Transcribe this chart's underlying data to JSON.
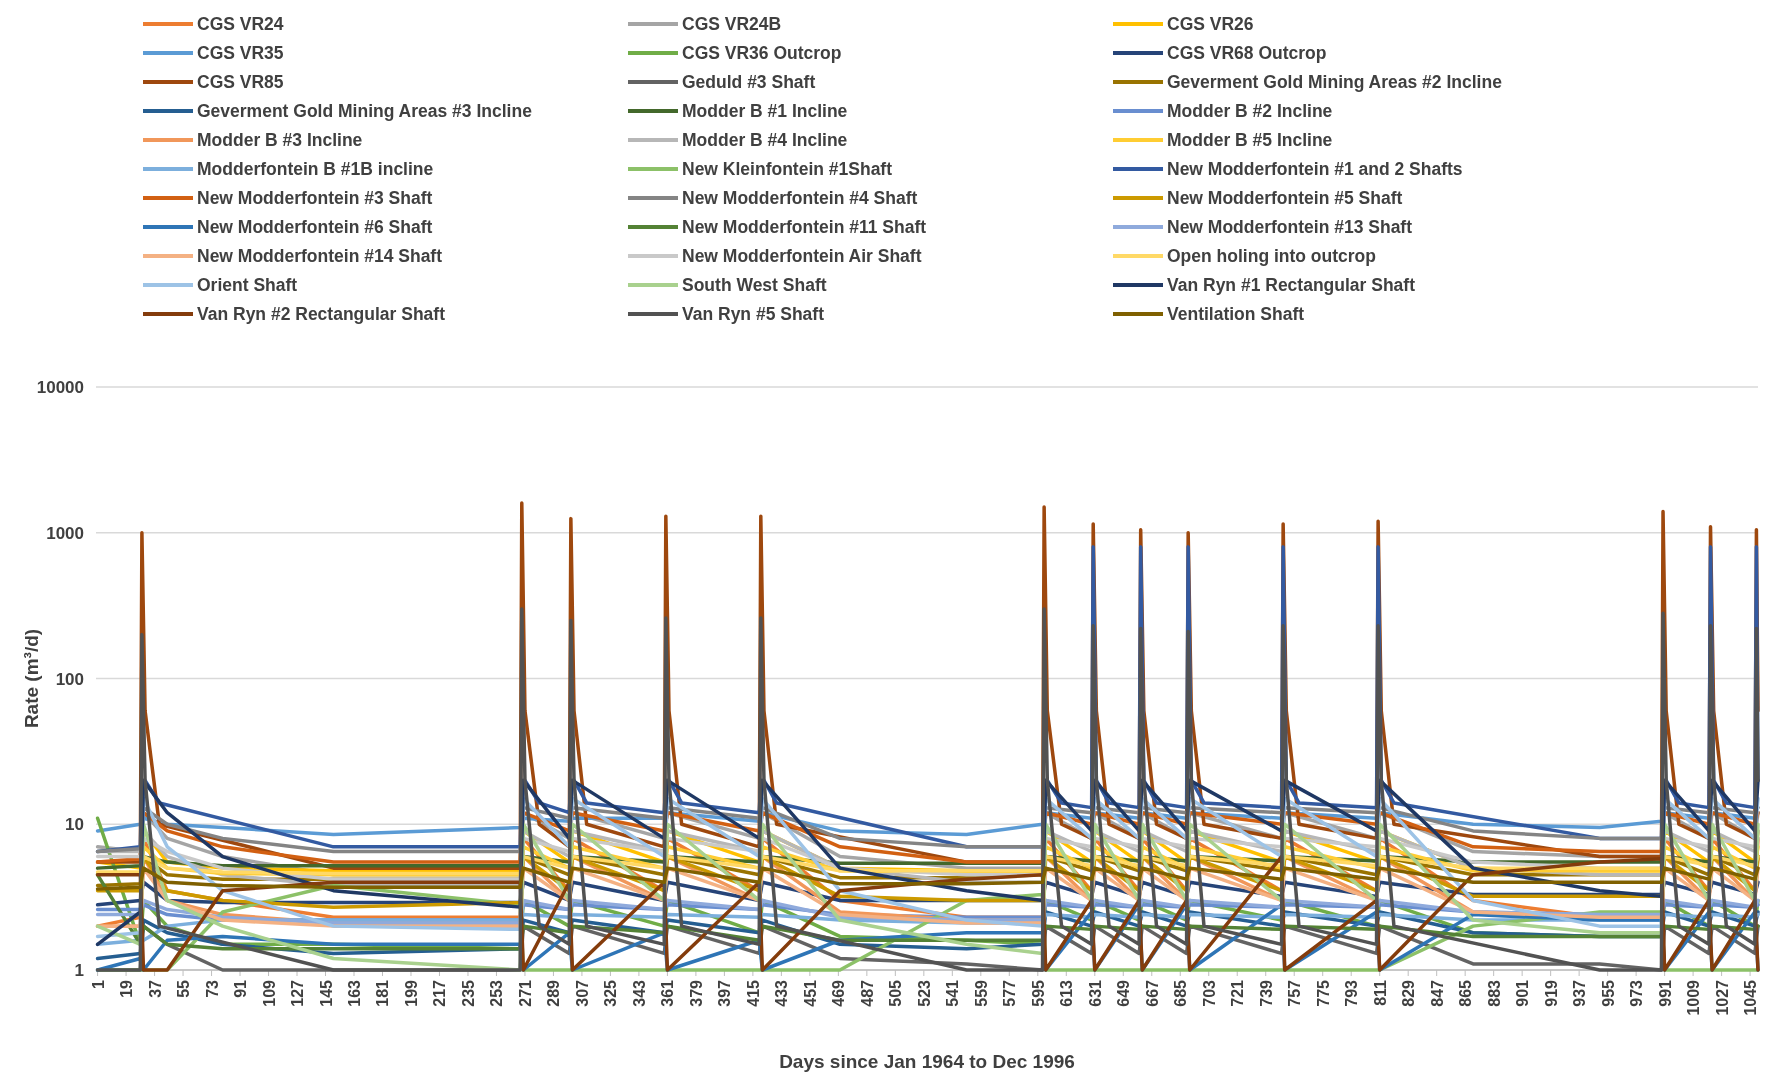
{
  "chart_data": {
    "type": "line",
    "xlabel": "Days since Jan 1964 to Dec 1996",
    "ylabel": "Rate (m³/d)",
    "log": true,
    "grid": "y",
    "legend": "top",
    "marker": "none",
    "line_style": "solid",
    "xlim": [
      0,
      1050
    ],
    "xticks": [
      1,
      19,
      37,
      55,
      73,
      91,
      109,
      127,
      145,
      163,
      181,
      199,
      217,
      235,
      253,
      271,
      289,
      307,
      325,
      343,
      361,
      379,
      397,
      415,
      433,
      451,
      469,
      487,
      505,
      523,
      541,
      559,
      577,
      595,
      613,
      631,
      649,
      667,
      685,
      703,
      721,
      739,
      757,
      775,
      793,
      811,
      829,
      847,
      865,
      883,
      901,
      919,
      937,
      955,
      973,
      991,
      1009,
      1027,
      1045
    ],
    "ylim": [
      1,
      10000
    ],
    "yticks": [
      1,
      10,
      100,
      1000,
      10000
    ],
    "x": [
      1,
      28,
      30,
      45,
      80,
      150,
      268,
      270,
      299,
      301,
      359,
      361,
      419,
      421,
      470,
      550,
      598,
      600,
      629,
      631,
      659,
      661,
      689,
      691,
      749,
      751,
      809,
      811,
      870,
      950,
      989,
      991,
      1019,
      1021,
      1048,
      1050
    ],
    "series": [
      {
        "name": "CGS VR24",
        "color": "#ed7d31",
        "values": [
          2,
          2.3,
          8,
          3.5,
          3,
          2.3,
          2.3,
          8,
          3.5,
          8,
          3.5,
          8,
          3.5,
          8,
          3,
          2.3,
          2.3,
          8,
          3.5,
          8,
          3.5,
          8,
          3.5,
          8,
          3.5,
          8,
          3.5,
          8,
          3,
          2.3,
          2.3,
          8,
          3.5,
          8,
          3.5,
          8
        ]
      },
      {
        "name": "CGS VR24B",
        "color": "#a5a5a5",
        "values": [
          7,
          6.5,
          12,
          8,
          6,
          4.5,
          4.5,
          12,
          8,
          12,
          8,
          12,
          8,
          12,
          6,
          5,
          5,
          12,
          8,
          12,
          8,
          12,
          8,
          12,
          8,
          12,
          8,
          12,
          6.5,
          6,
          6,
          12,
          8,
          12,
          8,
          12
        ]
      },
      {
        "name": "CGS VR26",
        "color": "#ffc000",
        "values": [
          5.5,
          5,
          9,
          5.5,
          5,
          4.8,
          4.8,
          9,
          5.5,
          9,
          5.5,
          9,
          5.5,
          9,
          5,
          4.8,
          4.8,
          9,
          5.5,
          9,
          5.5,
          9,
          5.5,
          9,
          5.5,
          9,
          5.5,
          9,
          5,
          4.8,
          4.8,
          9,
          5.5,
          9,
          5.5,
          9
        ]
      },
      {
        "name": "CGS VR35",
        "color": "#5b9bd5",
        "values": [
          9,
          10,
          11,
          10,
          9.5,
          8.5,
          9.5,
          11,
          10.5,
          11,
          11,
          12,
          10.5,
          12,
          9,
          8.5,
          10,
          12,
          11,
          12,
          11,
          12,
          11,
          12,
          11,
          12,
          11,
          12,
          10,
          9.5,
          10.5,
          12,
          11,
          12,
          11,
          12
        ]
      },
      {
        "name": "CGS VR36 Outcrop",
        "color": "#70ad47",
        "values": [
          11,
          1.5,
          3,
          2,
          1.5,
          1.5,
          1.4,
          3,
          2,
          3,
          2,
          3,
          1.8,
          3,
          1.7,
          1.6,
          1.5,
          3,
          2.2,
          3,
          2.2,
          3,
          2.2,
          3,
          2.2,
          3,
          2,
          3,
          1.8,
          1.7,
          1.7,
          3,
          2,
          3,
          2,
          3
        ]
      },
      {
        "name": "CGS VR68 Outcrop",
        "color": "#264478",
        "values": [
          2.8,
          3,
          4,
          3,
          2.9,
          2.9,
          2.9,
          4,
          3,
          4,
          3,
          4,
          3,
          4,
          3,
          3,
          3,
          4,
          3.2,
          4,
          3.2,
          4,
          3.2,
          4,
          3.2,
          4,
          3.2,
          4,
          3.3,
          3.3,
          3.3,
          4,
          3.3,
          4,
          3.3,
          4
        ]
      },
      {
        "name": "CGS VR85",
        "color": "#9e480e",
        "x": [
          1,
          28,
          29,
          31,
          40,
          150,
          268,
          269,
          271,
          280,
          299,
          300,
          302,
          310,
          359,
          360,
          362,
          370,
          419,
          420,
          422,
          430,
          550,
          598,
          599,
          601,
          610,
          629,
          630,
          632,
          640,
          659,
          660,
          662,
          670,
          689,
          690,
          692,
          700,
          749,
          750,
          752,
          760,
          809,
          810,
          812,
          820,
          950,
          989,
          990,
          992,
          1000,
          1019,
          1020,
          1022,
          1030,
          1048,
          1049,
          1050
        ],
        "values": [
          5.5,
          5.5,
          1000,
          60,
          10,
          5,
          5,
          1600,
          60,
          10,
          7,
          1250,
          60,
          10,
          7,
          1300,
          60,
          10,
          7,
          1300,
          60,
          10,
          5.5,
          5.5,
          1500,
          60,
          10,
          8,
          1150,
          60,
          10,
          8,
          1050,
          60,
          10,
          8,
          1000,
          60,
          10,
          8,
          1150,
          60,
          10,
          8,
          1200,
          60,
          10,
          6,
          6,
          1400,
          60,
          10,
          8,
          1100,
          60,
          10,
          8,
          1050,
          60
        ]
      },
      {
        "name": "Geduld #3 Shaft",
        "color": "#636363",
        "values": [
          1,
          1,
          2,
          1.5,
          1,
          1,
          1,
          2,
          1.3,
          2,
          1.3,
          2,
          1.3,
          2,
          1.2,
          1.1,
          1,
          2,
          1.3,
          2,
          1.3,
          2,
          1.3,
          2,
          1.3,
          2,
          1.3,
          2,
          1.1,
          1.1,
          1,
          2,
          1.3,
          2,
          1.3,
          2
        ]
      },
      {
        "name": "Geverment Gold Mining Areas #2 Incline",
        "color": "#997300",
        "values": [
          3.8,
          3.9,
          6,
          4.5,
          4.2,
          4.2,
          4.2,
          6,
          4.5,
          6,
          4.5,
          6,
          4.5,
          6,
          4.3,
          4.3,
          4.5,
          6,
          4.8,
          6,
          4.8,
          6,
          4.8,
          6,
          4.8,
          6,
          4.5,
          6,
          4.5,
          4.5,
          4.5,
          6,
          4.5,
          6,
          4.5,
          6
        ]
      },
      {
        "name": "Geverment Gold Mining Areas #3 Incline",
        "color": "#255e91",
        "values": [
          1.2,
          1.3,
          2.2,
          1.8,
          1.5,
          1.3,
          1.4,
          2.2,
          1.8,
          2.2,
          1.8,
          2.2,
          1.8,
          2.2,
          1.5,
          1.4,
          1.5,
          2.5,
          2,
          2.5,
          2,
          2.5,
          2,
          2.5,
          2,
          2.5,
          2,
          2.5,
          1.8,
          1.7,
          1.7,
          2.5,
          2,
          2.5,
          2,
          2.5
        ]
      },
      {
        "name": "Modder B #1 Incline",
        "color": "#43682b",
        "values": [
          5,
          5.2,
          6,
          5.5,
          5.2,
          5.2,
          5.2,
          6,
          5.5,
          6,
          5.5,
          6,
          5.5,
          6,
          5.4,
          5.4,
          5.4,
          6,
          5.6,
          6,
          5.6,
          6,
          5.6,
          6,
          5.6,
          6,
          5.6,
          6,
          5.5,
          5.5,
          5.5,
          6,
          5.5,
          6,
          5.5,
          6
        ]
      },
      {
        "name": "Modder B #2 Incline",
        "color": "#698ed0",
        "values": [
          2.6,
          2.6,
          2.8,
          2.4,
          2.2,
          2.2,
          2.2,
          2.8,
          2.6,
          2.8,
          2.6,
          2.8,
          2.6,
          2.8,
          2.4,
          2.3,
          2.3,
          2.8,
          2.7,
          2.8,
          2.7,
          2.8,
          2.7,
          2.8,
          2.7,
          2.8,
          2.7,
          2.8,
          2.5,
          2.4,
          2.4,
          2.8,
          2.7,
          2.8,
          2.7,
          2.8
        ]
      },
      {
        "name": "Modder B #3 Incline",
        "color": "#f1975a",
        "values": [
          2,
          2,
          6,
          3,
          2.4,
          2.1,
          2.1,
          6,
          3,
          6,
          3,
          6,
          3,
          6,
          2.5,
          2.2,
          2.2,
          6,
          3,
          6,
          3,
          6,
          3,
          6,
          3,
          6,
          3,
          6,
          2.5,
          2.3,
          2.3,
          6,
          3,
          6,
          3,
          6
        ]
      },
      {
        "name": "Modder B #4 Incline",
        "color": "#b7b7b7",
        "values": [
          6.5,
          6.5,
          9,
          6,
          4.5,
          3.8,
          3.8,
          9,
          6,
          9,
          6.5,
          9,
          6.5,
          9,
          5,
          4,
          4,
          9,
          6.5,
          9,
          6.5,
          9,
          6.5,
          9,
          6.5,
          9,
          6.5,
          9,
          5,
          4.5,
          4.5,
          9,
          6.5,
          9,
          6.5,
          9
        ]
      },
      {
        "name": "Modder B #5 Incline",
        "color": "#ffcd33",
        "values": [
          4.6,
          4.6,
          7,
          5,
          4.6,
          4.5,
          4.5,
          7,
          5,
          7,
          5,
          7,
          5,
          7,
          4.8,
          4.7,
          4.7,
          7,
          5,
          7,
          5,
          7,
          5,
          7,
          5,
          7,
          5,
          7,
          4.8,
          4.8,
          4.8,
          7,
          5,
          7,
          5,
          7
        ]
      },
      {
        "name": "Modderfontein B #1B incline",
        "color": "#7cafdd",
        "values": [
          1.5,
          1.6,
          1.6,
          2,
          2.2,
          2.2,
          2.2,
          2.4,
          2.3,
          2.4,
          2.3,
          2.4,
          2.3,
          2.4,
          2.2,
          2.1,
          2.1,
          2.4,
          2.3,
          2.4,
          2.3,
          2.4,
          2.3,
          2.4,
          2.3,
          2.4,
          2.3,
          2.4,
          2.2,
          2.2,
          2.2,
          2.4,
          2.3,
          2.4,
          2.3,
          2.4
        ]
      },
      {
        "name": "New Kleinfontein #1Shaft",
        "color": "#8cc168",
        "values": [
          1,
          1,
          1,
          1,
          2.5,
          3.8,
          2.8,
          1,
          1,
          1,
          1,
          1,
          1,
          1,
          1,
          3,
          3.3,
          1,
          1,
          1,
          1,
          1,
          1,
          1,
          1,
          1,
          1,
          1,
          2,
          2.5,
          2.5,
          1,
          1,
          1,
          1,
          1
        ]
      },
      {
        "name": "New Modderfontein #1 and 2 Shafts",
        "color": "#335aa1",
        "x": [
          1,
          28,
          29,
          31,
          40,
          150,
          268,
          269,
          271,
          280,
          299,
          300,
          302,
          310,
          359,
          360,
          362,
          370,
          419,
          420,
          422,
          430,
          550,
          598,
          599,
          601,
          610,
          629,
          630,
          632,
          640,
          659,
          660,
          662,
          670,
          689,
          690,
          692,
          700,
          749,
          750,
          752,
          760,
          809,
          810,
          812,
          820,
          950,
          989,
          990,
          992,
          1000,
          1019,
          1020,
          1022,
          1030,
          1048,
          1049,
          1050
        ],
        "values": [
          6.5,
          7,
          20,
          20,
          14,
          7,
          7,
          20,
          20,
          14,
          12,
          20,
          20,
          14,
          12,
          20,
          20,
          14,
          12,
          20,
          20,
          14,
          7,
          7,
          20,
          20,
          14,
          13,
          800,
          20,
          14,
          13,
          800,
          20,
          14,
          13,
          800,
          20,
          14,
          13,
          800,
          20,
          14,
          13,
          800,
          20,
          14,
          8,
          8,
          20,
          20,
          14,
          13,
          800,
          20,
          14,
          13,
          800,
          20
        ]
      },
      {
        "name": "New Modderfontein #3 Shaft",
        "color": "#d26012",
        "values": [
          5.5,
          5.8,
          12,
          9,
          7,
          5.5,
          5.5,
          12,
          9,
          12,
          9,
          12,
          9,
          12,
          7,
          5.5,
          5.5,
          12,
          10,
          12,
          10,
          12,
          10,
          12,
          10,
          12,
          10,
          12,
          7,
          6.5,
          6.5,
          12,
          10,
          12,
          10,
          12
        ]
      },
      {
        "name": "New Modderfontein #4 Shaft",
        "color": "#848484",
        "values": [
          6.5,
          6.8,
          13,
          10,
          8,
          6.5,
          6.5,
          13,
          11,
          13,
          11,
          13,
          11,
          13,
          8,
          7,
          7,
          13,
          12,
          13,
          12,
          13,
          12,
          13,
          12,
          13,
          12,
          13,
          9,
          8,
          8,
          13,
          12,
          13,
          12,
          13
        ]
      },
      {
        "name": "New Modderfontein #5 Shaft",
        "color": "#cc9a00",
        "values": [
          3.5,
          3.5,
          6,
          3.5,
          3,
          2.7,
          2.9,
          6,
          3.5,
          6,
          3.5,
          6,
          3.5,
          6,
          3.2,
          3,
          3,
          6,
          3.5,
          6,
          3.5,
          6,
          3.5,
          6,
          3.5,
          6,
          3.5,
          6,
          3.2,
          3.2,
          3.2,
          6,
          3.5,
          6,
          3.5,
          6
        ]
      },
      {
        "name": "New Modderfontein #6 Shaft",
        "color": "#2e75b6",
        "values": [
          1,
          1.2,
          1,
          1.6,
          1.7,
          1.5,
          1.5,
          1,
          1.8,
          1,
          1.8,
          1,
          1.6,
          1,
          1.6,
          1.8,
          1.8,
          1,
          2.5,
          1,
          2.8,
          1,
          2.8,
          1,
          2.8,
          1,
          2.5,
          1,
          2.4,
          2.2,
          2.2,
          1,
          2.5,
          1,
          2.5,
          1
        ]
      },
      {
        "name": "New Modderfontein #11 Shaft",
        "color": "#548235",
        "values": [
          4.5,
          1.5,
          2,
          1.5,
          1.4,
          1.4,
          1.4,
          2,
          1.8,
          2,
          1.8,
          2,
          1.6,
          2,
          1.6,
          1.6,
          1.6,
          2,
          1.9,
          2,
          1.9,
          2,
          1.9,
          2,
          1.9,
          2,
          1.9,
          2,
          1.7,
          1.7,
          1.7,
          2,
          1.9,
          2,
          1.9,
          2
        ]
      },
      {
        "name": "New Modderfontein #13 Shaft",
        "color": "#8faadc",
        "values": [
          2.4,
          2.4,
          3,
          2.6,
          2.3,
          2.1,
          2.1,
          3,
          2.6,
          3,
          2.6,
          3,
          2.6,
          3,
          2.3,
          2.2,
          2.2,
          3,
          2.7,
          3,
          2.7,
          3,
          2.7,
          3,
          2.7,
          3,
          2.7,
          3,
          2.5,
          2.4,
          2.4,
          3,
          2.7,
          3,
          2.7,
          3
        ]
      },
      {
        "name": "New Modderfontein #14 Shaft",
        "color": "#f4b183",
        "values": [
          2,
          2,
          5,
          3,
          2.2,
          2,
          2,
          5,
          3,
          5,
          3,
          5,
          3,
          5,
          2.4,
          2.1,
          2.1,
          5,
          3,
          5,
          3,
          5,
          3,
          5,
          3,
          5,
          3,
          5,
          2.5,
          2.3,
          2.3,
          5,
          3,
          5,
          3,
          5
        ]
      },
      {
        "name": "New Modderfontein Air Shaft",
        "color": "#c9c9c9",
        "values": [
          6,
          6,
          8,
          6.5,
          5,
          4.2,
          4.2,
          8,
          6.5,
          8,
          6.5,
          8,
          6.5,
          8,
          5,
          4.5,
          4.5,
          8,
          7,
          8,
          7,
          8,
          7,
          8,
          7,
          8,
          7,
          8,
          5.5,
          5,
          5,
          8,
          7,
          8,
          7,
          8
        ]
      },
      {
        "name": "Open holing into outcrop",
        "color": "#ffd966",
        "values": [
          4.7,
          4.7,
          6,
          5,
          4.7,
          4.6,
          4.6,
          6,
          5,
          6,
          5,
          6,
          5,
          6,
          4.8,
          4.8,
          4.8,
          6,
          5.2,
          6,
          5.2,
          6,
          5.2,
          6,
          5.2,
          6,
          5.2,
          6,
          5,
          5,
          5,
          6,
          5.2,
          6,
          5.2,
          6
        ]
      },
      {
        "name": "Orient Shaft",
        "color": "#9dc3e6",
        "values": [
          1.7,
          1.8,
          15,
          7,
          3.5,
          2,
          1.9,
          15,
          7,
          15,
          6,
          15,
          6,
          15,
          3.5,
          2.2,
          2,
          15,
          8,
          15,
          8,
          15,
          8,
          15,
          6,
          15,
          6,
          15,
          3,
          2,
          2,
          15,
          8,
          15,
          8,
          15
        ]
      },
      {
        "name": "South West Shaft",
        "color": "#a9d18e",
        "values": [
          2,
          1.5,
          10,
          3,
          2,
          1.2,
          1,
          10,
          3,
          10,
          3,
          10,
          3,
          10,
          2.2,
          1.5,
          1.3,
          10,
          3,
          10,
          3,
          10,
          3,
          10,
          3,
          10,
          3,
          10,
          2.2,
          1.8,
          1.8,
          10,
          3,
          10,
          3,
          10
        ]
      },
      {
        "name": "Van Ryn #1 Rectangular Shaft",
        "color": "#1f3864",
        "values": [
          1.5,
          2.5,
          20,
          12,
          6,
          3.5,
          2.7,
          20,
          8,
          20,
          8,
          20,
          8,
          20,
          5,
          3.5,
          3,
          20,
          9,
          20,
          9,
          20,
          9,
          20,
          9,
          20,
          9,
          20,
          5,
          3.5,
          3.2,
          20,
          9,
          20,
          9,
          20
        ]
      },
      {
        "name": "Van Ryn #2 Rectangular Shaft",
        "color": "#843c0c",
        "values": [
          4.5,
          4.5,
          1,
          1,
          3.5,
          4,
          4,
          1,
          4,
          1,
          4,
          1,
          4,
          1,
          3.5,
          4.2,
          4.5,
          1,
          3,
          1,
          3,
          1,
          3,
          1,
          6,
          1,
          3,
          1,
          4.5,
          5.5,
          5.8,
          1,
          3,
          1,
          3,
          1
        ]
      },
      {
        "name": "Van Ryn #5 Shaft",
        "color": "#525252",
        "x": [
          1,
          28,
          29,
          31,
          40,
          150,
          268,
          269,
          271,
          280,
          299,
          300,
          302,
          310,
          359,
          360,
          362,
          370,
          419,
          420,
          422,
          430,
          550,
          598,
          599,
          601,
          610,
          629,
          630,
          632,
          640,
          659,
          660,
          662,
          670,
          689,
          690,
          692,
          700,
          749,
          750,
          752,
          760,
          809,
          810,
          812,
          820,
          950,
          989,
          990,
          992,
          1000,
          1019,
          1020,
          1022,
          1030,
          1048,
          1049,
          1050
        ],
        "values": [
          1,
          1,
          200,
          20,
          2,
          1,
          1,
          300,
          20,
          2,
          1.5,
          250,
          20,
          2,
          1.5,
          260,
          20,
          2,
          1.5,
          260,
          20,
          2,
          1,
          1,
          300,
          20,
          2,
          1.5,
          230,
          20,
          2,
          1.5,
          220,
          20,
          2,
          1.5,
          210,
          20,
          2,
          1.5,
          230,
          20,
          2,
          1.5,
          230,
          20,
          2,
          1,
          1,
          280,
          20,
          2,
          1.5,
          230,
          20,
          2,
          1.5,
          220,
          20
        ]
      },
      {
        "name": "Ventilation Shaft",
        "color": "#7f6000",
        "values": [
          3.6,
          3.7,
          5,
          4,
          3.8,
          3.7,
          3.7,
          5,
          4,
          5,
          4,
          5,
          4,
          5,
          3.9,
          3.9,
          4,
          5,
          4.2,
          5,
          4.2,
          5,
          4.2,
          5,
          4.2,
          5,
          4.2,
          5,
          4,
          4,
          4,
          5,
          4.2,
          5,
          4.2,
          5
        ]
      }
    ]
  }
}
